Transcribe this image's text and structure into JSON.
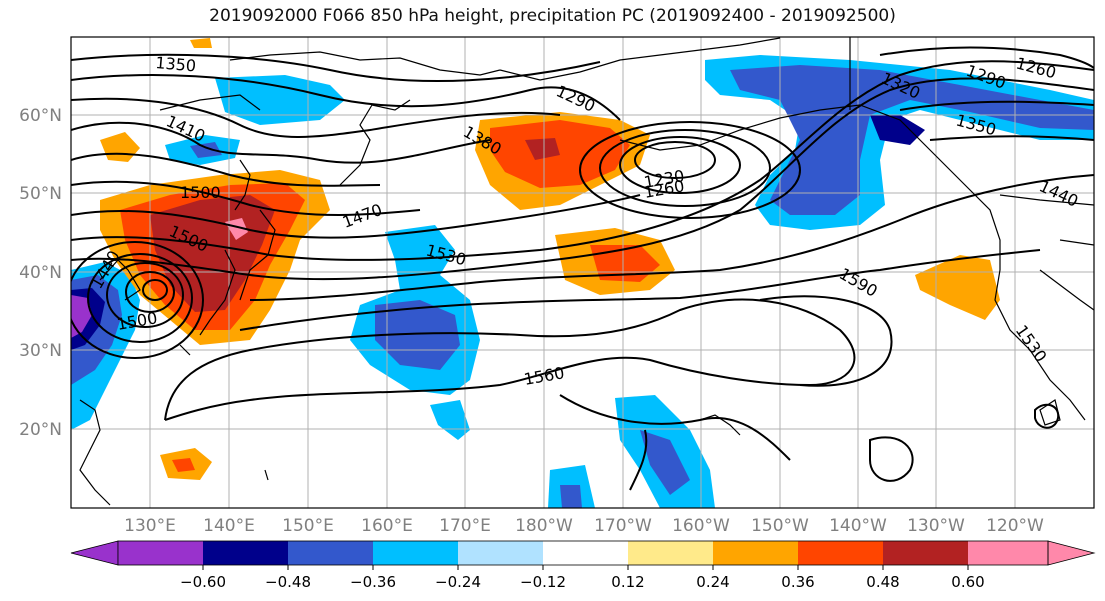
{
  "title": "2019092000 F066 850 hPa height, precipitation PC (2019092400 - 2019092500)",
  "lat_labels": [
    "60°N",
    "50°N",
    "40°N",
    "30°N",
    "20°N"
  ],
  "lon_labels": [
    "130°E",
    "140°E",
    "150°E",
    "160°E",
    "170°E",
    "180°W",
    "170°W",
    "160°W",
    "150°W",
    "140°W",
    "130°W",
    "120°W"
  ],
  "contour_labels": [
    "1350",
    "1410",
    "1500",
    "1500",
    "1470",
    "1380",
    "1290",
    "1530",
    "1230",
    "1260",
    "1320",
    "1290",
    "1260",
    "1350",
    "1440",
    "1590",
    "1560",
    "1530",
    "1500",
    "1440"
  ],
  "colorbar": {
    "colors": [
      "#9932cc",
      "#00008b",
      "#3358cc",
      "#00bfff",
      "#b0e2ff",
      "#ffffff",
      "#ffea8a",
      "#ffa500",
      "#ff4500",
      "#b22222",
      "#ff88aa"
    ],
    "ticks": [
      "−0.60",
      "−0.48",
      "−0.36",
      "−0.24",
      "−0.12",
      "0.12",
      "0.24",
      "0.36",
      "0.48",
      "0.60"
    ]
  },
  "colors": {
    "contour": "#000000",
    "coast": "#000000",
    "grid": "#b0b0b0",
    "axis_label": "#808080"
  }
}
